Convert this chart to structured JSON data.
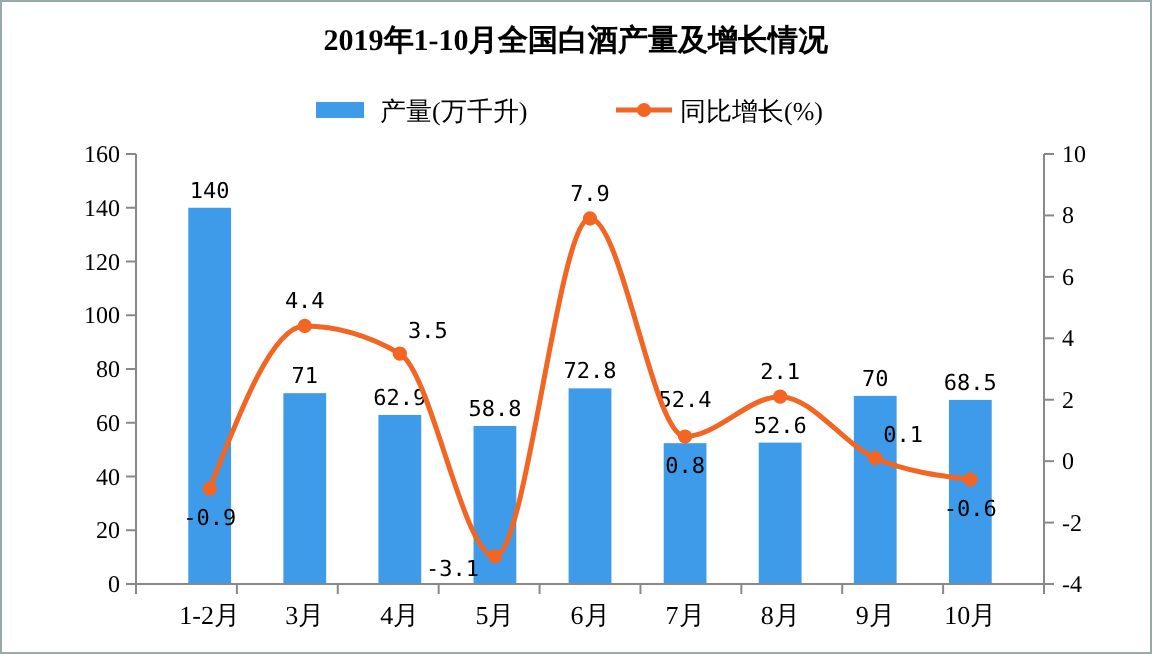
{
  "chart_data": {
    "type": "bar",
    "title": "2019年1-10月全国白酒产量及增长情况",
    "categories": [
      "1-2月",
      "3月",
      "4月",
      "5月",
      "6月",
      "7月",
      "8月",
      "9月",
      "10月"
    ],
    "series": [
      {
        "name": "产量(万千升)",
        "color": "#3d9be9",
        "values": [
          140,
          71,
          62.9,
          58.8,
          72.8,
          52.4,
          52.6,
          70,
          68.5
        ]
      },
      {
        "name": "同比增长(%)",
        "type": "line",
        "axis": "y2",
        "color": "#f26522",
        "values": [
          -0.9,
          4.4,
          3.5,
          -3.1,
          7.9,
          0.8,
          2.1,
          0.1,
          -0.6
        ]
      }
    ],
    "ylim": [
      0,
      160
    ],
    "yticks": [
      0,
      20,
      40,
      60,
      80,
      100,
      120,
      140,
      160
    ],
    "y2lim": [
      -4,
      10
    ],
    "y2ticks": [
      -4,
      -2,
      0,
      2,
      4,
      6,
      8,
      10
    ],
    "legend": "top",
    "marker": "circle",
    "data_labels": true,
    "grid": false
  }
}
